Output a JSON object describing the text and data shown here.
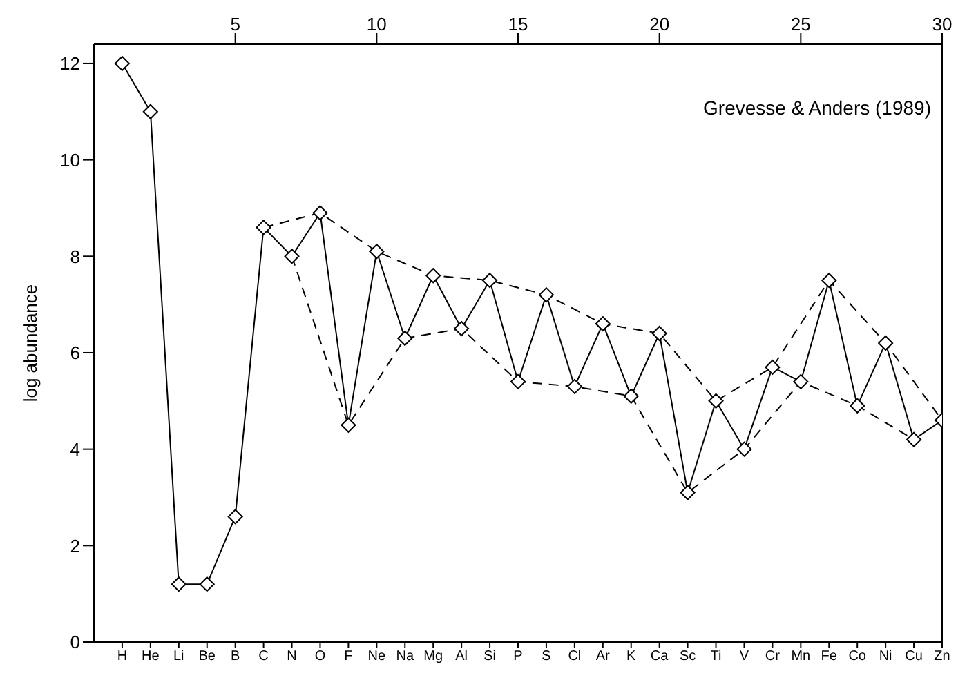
{
  "chart_data": {
    "type": "line",
    "ylabel": "log abundance",
    "annotations": [
      "Grevesse & Anders (1989)"
    ],
    "categories": [
      "H",
      "He",
      "Li",
      "Be",
      "B",
      "C",
      "N",
      "O",
      "F",
      "Ne",
      "Na",
      "Mg",
      "Al",
      "Si",
      "P",
      "S",
      "Cl",
      "Ar",
      "K",
      "Ca",
      "Sc",
      "Ti",
      "V",
      "Cr",
      "Mn",
      "Fe",
      "Co",
      "Ni",
      "Cu",
      "Zn"
    ],
    "x2lim": [
      0,
      30
    ],
    "x2ticks": [
      5,
      10,
      15,
      20,
      25,
      30
    ],
    "ylim": [
      0,
      12.4
    ],
    "yticks": [
      0,
      2,
      4,
      6,
      8,
      10,
      12
    ],
    "series": [
      {
        "color": "#000000",
        "marker": "diamond",
        "line_style": "solid",
        "values": [
          12.0,
          11.0,
          1.2,
          1.2,
          2.6,
          8.6,
          8.0,
          8.9,
          4.5,
          8.1,
          6.3,
          7.6,
          6.5,
          7.5,
          5.4,
          7.2,
          5.3,
          6.6,
          5.1,
          6.4,
          3.1,
          5.0,
          4.0,
          5.7,
          5.4,
          7.5,
          4.9,
          6.2,
          4.2,
          4.6
        ]
      },
      {
        "color": "#000000",
        "marker": "none",
        "line_style": "dashed",
        "values": [
          null,
          null,
          null,
          null,
          null,
          8.6,
          null,
          8.9,
          null,
          8.1,
          null,
          7.6,
          null,
          7.5,
          null,
          7.2,
          null,
          6.6,
          null,
          6.4,
          null,
          5.0,
          null,
          5.7,
          null,
          7.5,
          null,
          6.2,
          null,
          4.6
        ]
      },
      {
        "color": "#000000",
        "marker": "none",
        "line_style": "dashed",
        "values": [
          null,
          null,
          null,
          null,
          null,
          null,
          8.0,
          null,
          4.5,
          null,
          6.3,
          null,
          6.5,
          null,
          5.4,
          null,
          5.3,
          null,
          5.1,
          null,
          3.1,
          null,
          4.0,
          null,
          5.4,
          null,
          4.9,
          null,
          4.2,
          null
        ]
      }
    ]
  }
}
